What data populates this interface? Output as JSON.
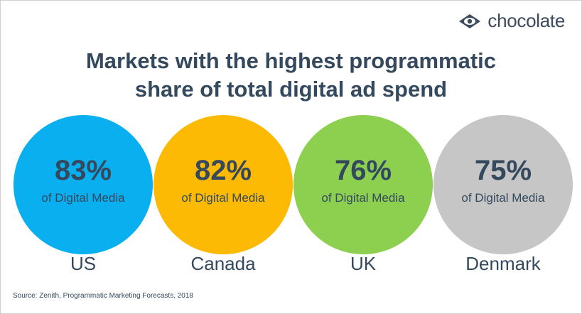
{
  "title_line1": "Markets with the highest programmatic",
  "title_line2": "share of total digital ad spend",
  "logo": {
    "text": "chocolate",
    "icon": "eye-diamond-icon"
  },
  "source": "Source: Zenith, Programmatic Marketing Forecasts, 2018",
  "chart_data": {
    "type": "bubble-stat",
    "title": "Markets with the highest programmatic share of total digital ad spend",
    "unit_label": "of Digital Media",
    "categories": [
      "US",
      "Canada",
      "UK",
      "Denmark"
    ],
    "values": [
      83,
      82,
      76,
      75
    ],
    "value_labels": [
      "83%",
      "82%",
      "76%",
      "75%"
    ],
    "colors": [
      "#0AAFEF",
      "#FDBA04",
      "#8DD04F",
      "#C6C6C6"
    ]
  }
}
